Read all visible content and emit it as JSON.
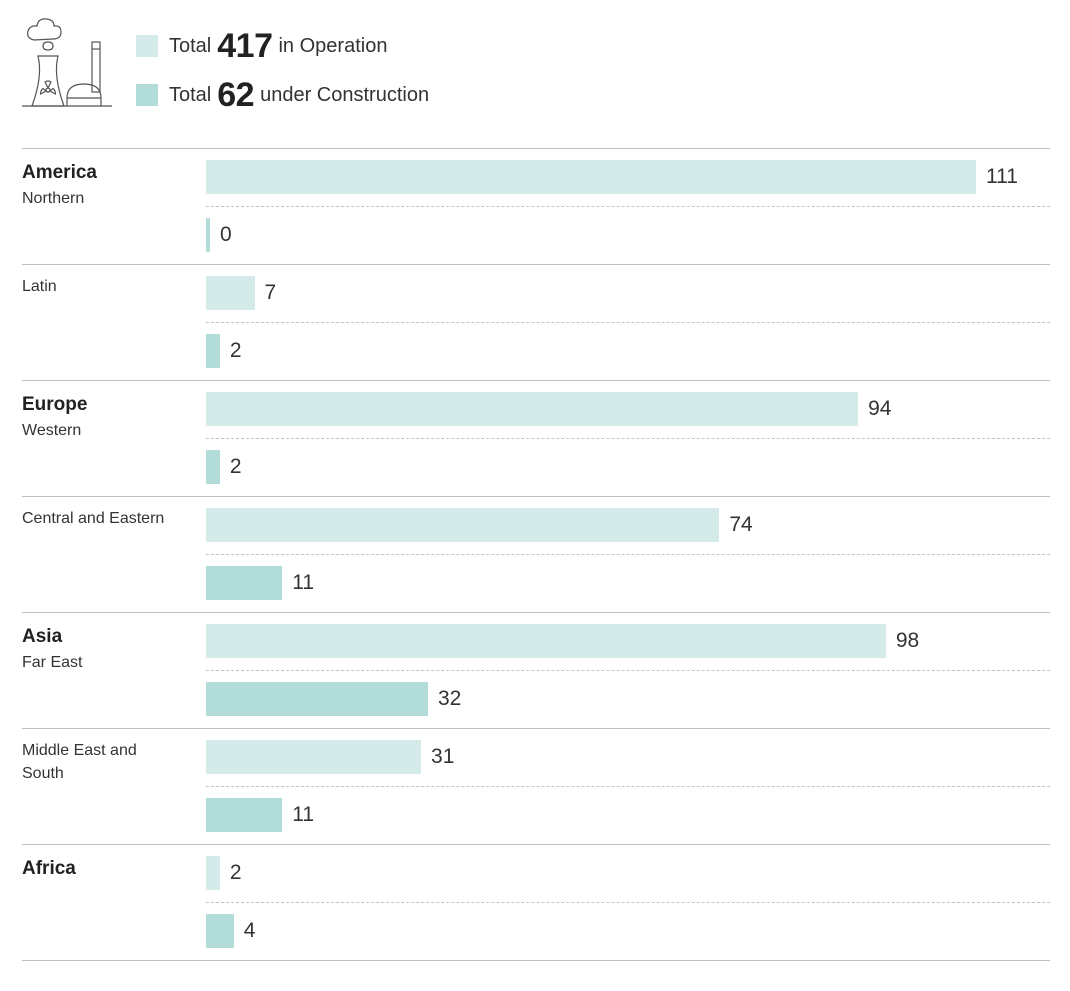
{
  "legend": {
    "operation": {
      "prefix": "Total",
      "count": "417",
      "suffix": "in Operation",
      "color": "#d4ebe9"
    },
    "construction": {
      "prefix": "Total",
      "count": "62",
      "suffix": "under Construction",
      "color": "#b2dcd8"
    }
  },
  "icon": "nuclear-power-plant-icon",
  "chart_data": {
    "type": "bar",
    "orientation": "horizontal",
    "title": "",
    "xlabel": "",
    "ylabel": "",
    "xlim": [
      0,
      111
    ],
    "grid": false,
    "series": [
      {
        "name": "in Operation",
        "color": "#d4ebe9"
      },
      {
        "name": "under Construction",
        "color": "#b2dcd8"
      }
    ],
    "groups": [
      {
        "region": "America",
        "subregions": [
          {
            "name": "Northern",
            "operation": 111,
            "construction": 0
          },
          {
            "name": "Latin",
            "operation": 7,
            "construction": 2
          }
        ]
      },
      {
        "region": "Europe",
        "subregions": [
          {
            "name": "Western",
            "operation": 94,
            "construction": 2
          },
          {
            "name": "Central and Eastern",
            "operation": 74,
            "construction": 11
          }
        ]
      },
      {
        "region": "Asia",
        "subregions": [
          {
            "name": "Far East",
            "operation": 98,
            "construction": 32
          },
          {
            "name": "Middle East and South",
            "operation": 31,
            "construction": 11
          }
        ]
      },
      {
        "region": "Africa",
        "subregions": [
          {
            "name": "",
            "operation": 2,
            "construction": 4
          }
        ]
      }
    ]
  }
}
